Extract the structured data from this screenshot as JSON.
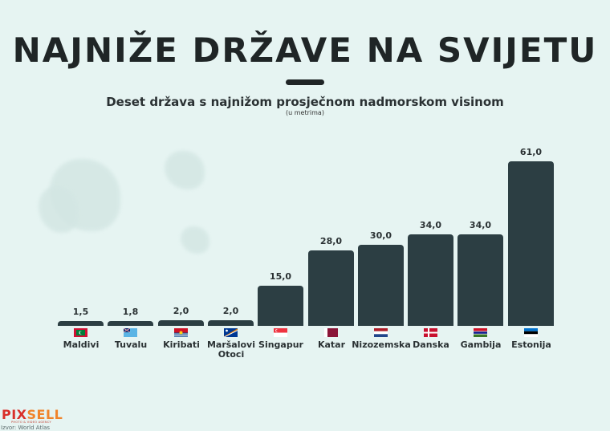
{
  "header": {
    "title": "NAJNIŽE DRŽAVE NA SVIJETU",
    "subtitle": "Deset država s najnižom prosječnom nadmorskom visinom",
    "unit": "(u metrima)"
  },
  "footer": {
    "logo_part1": "PIX",
    "logo_part2": "SELL",
    "logo_tagline": "PHOTO & VIDEO AGENCY",
    "source": "Izvor: World Atlas"
  },
  "colors": {
    "bar": "#2c3e43",
    "background": "#e6f4f2",
    "logo_red": "#d9302a",
    "logo_orange": "#f0842b"
  },
  "chart_data": {
    "type": "bar",
    "title": "NAJNIŽE DRŽAVE NA SVIJETU",
    "subtitle": "Deset država s najnižom prosječnom nadmorskom visinom (u metrima)",
    "xlabel": "",
    "ylabel": "",
    "categories": [
      "Maldivi",
      "Tuvalu",
      "Kiribati",
      "Maršalovi Otoci",
      "Singapur",
      "Katar",
      "Nizozemska",
      "Danska",
      "Gambija",
      "Estonija"
    ],
    "values": [
      1.5,
      1.8,
      2.0,
      2.0,
      15.0,
      28.0,
      30.0,
      34.0,
      34.0,
      61.0
    ],
    "value_labels": [
      "1,5",
      "1,8",
      "2,0",
      "2,0",
      "15,0",
      "28,0",
      "30,0",
      "34,0",
      "34,0",
      "61,0"
    ],
    "ylim": [
      0,
      61
    ],
    "grid": false,
    "legend": "none"
  }
}
